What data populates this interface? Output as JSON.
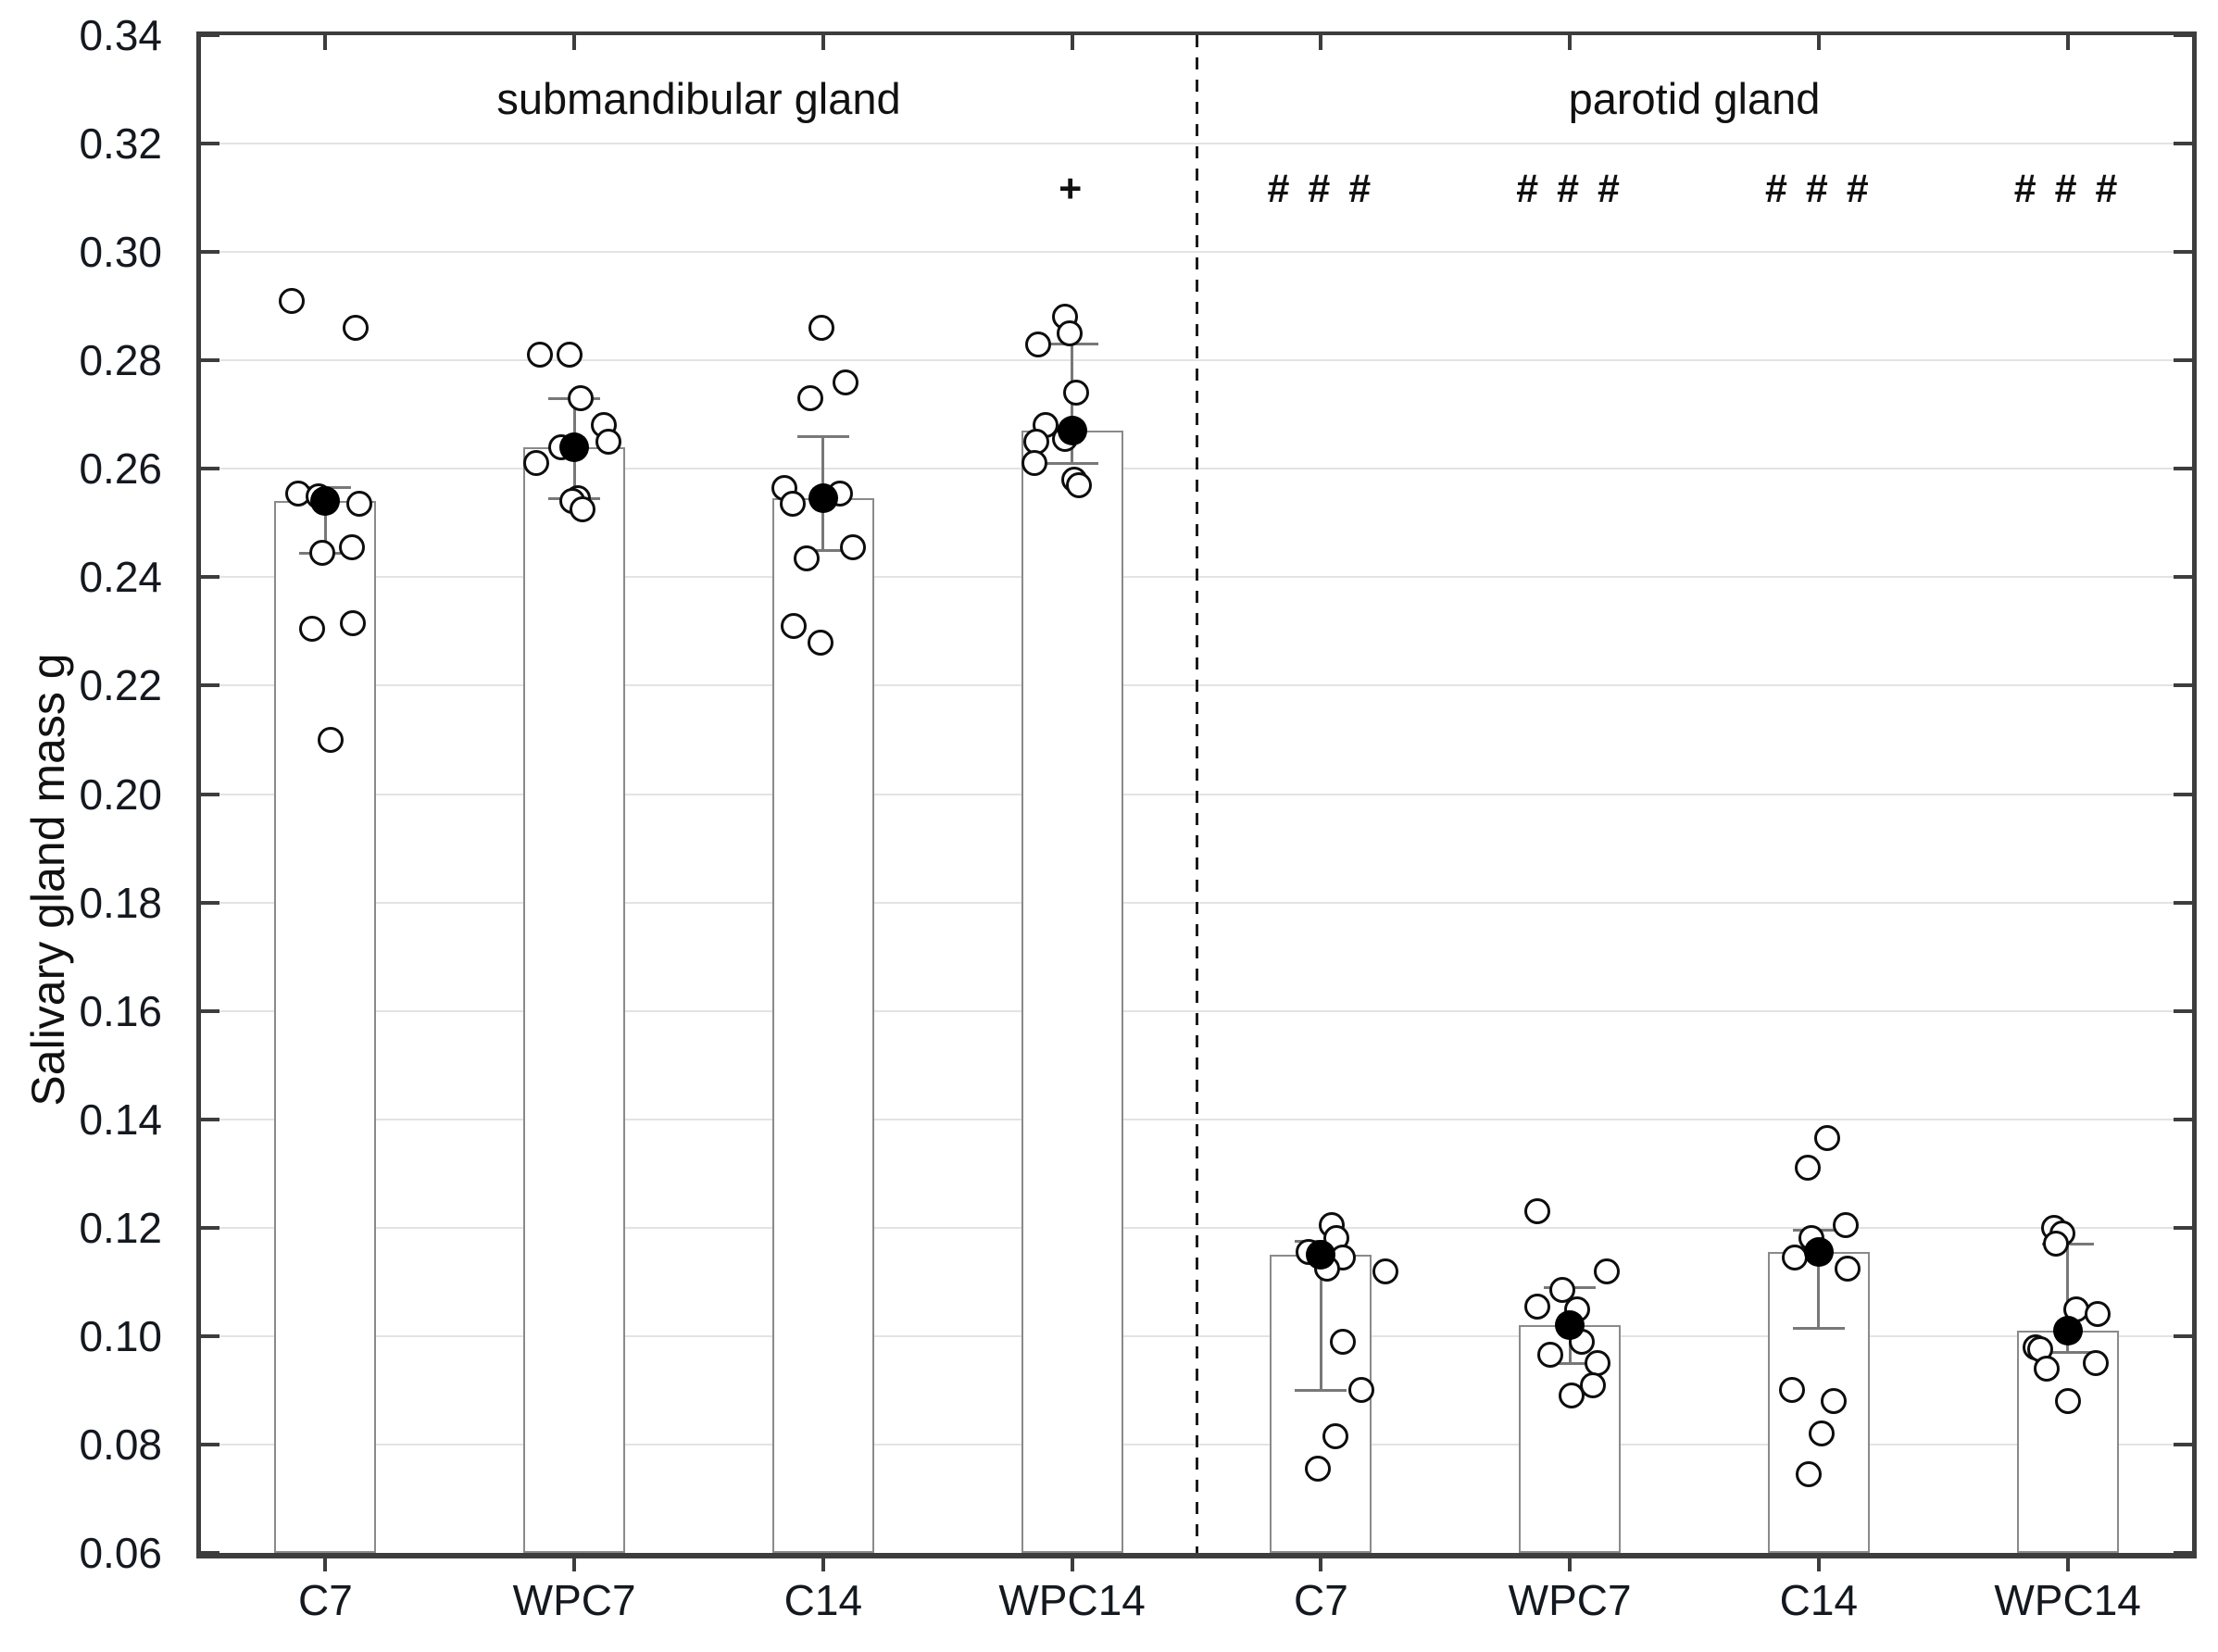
{
  "figure": {
    "background_color": "#ffffff",
    "text_color": "#111111"
  },
  "chart_data": {
    "type": "bar",
    "title": "",
    "xlabel": "",
    "ylabel": "Salivary gland mass g",
    "ylim": [
      0.06,
      0.34
    ],
    "ytick_step": 0.02,
    "ytick_labels": [
      "0.34",
      "0.32",
      "0.30",
      "0.28",
      "0.26",
      "0.24",
      "0.22",
      "0.20",
      "0.18",
      "0.16",
      "0.14",
      "0.12",
      "0.10",
      "0.08",
      "0.06"
    ],
    "grid": "horizontal-light",
    "legend": "none",
    "marker_legend": {
      "open_circle": "individual animal value",
      "filled_circle": "group mean",
      "whiskers": "standard deviation",
      "bar": "group mean bar"
    },
    "sections": [
      {
        "label": "submandibular gland"
      },
      {
        "label": "parotid gland"
      }
    ],
    "separator_between_groups": [
      3,
      4
    ],
    "groups": [
      {
        "label": "C7",
        "section": 0,
        "mean": 0.254,
        "bar_top": 0.254,
        "err_low": 0.2445,
        "err_high": 0.2565,
        "annotation": "",
        "points": [
          [
            0.291,
            -36
          ],
          [
            0.286,
            33
          ],
          [
            0.2555,
            -29
          ],
          [
            0.255,
            -7
          ],
          [
            0.2535,
            37
          ],
          [
            0.2455,
            29
          ],
          [
            0.2445,
            -3
          ],
          [
            0.2315,
            30
          ],
          [
            0.2305,
            -14
          ],
          [
            0.21,
            6
          ]
        ]
      },
      {
        "label": "WPC7",
        "section": 0,
        "mean": 0.264,
        "bar_top": 0.264,
        "err_low": 0.2545,
        "err_high": 0.273,
        "annotation": "",
        "points": [
          [
            0.281,
            -37
          ],
          [
            0.281,
            -5
          ],
          [
            0.273,
            7
          ],
          [
            0.268,
            32
          ],
          [
            0.265,
            37
          ],
          [
            0.264,
            -14
          ],
          [
            0.261,
            -41
          ],
          [
            0.2545,
            4
          ],
          [
            0.254,
            -2
          ],
          [
            0.2525,
            9
          ]
        ]
      },
      {
        "label": "C14",
        "section": 0,
        "mean": 0.2545,
        "bar_top": 0.2545,
        "err_low": 0.245,
        "err_high": 0.266,
        "annotation": "",
        "points": [
          [
            0.286,
            -2
          ],
          [
            0.276,
            24
          ],
          [
            0.273,
            -14
          ],
          [
            0.2565,
            -42
          ],
          [
            0.2555,
            18
          ],
          [
            0.2535,
            -33
          ],
          [
            0.2455,
            32
          ],
          [
            0.2435,
            -18
          ],
          [
            0.231,
            -32
          ],
          [
            0.228,
            -3
          ]
        ]
      },
      {
        "label": "WPC14",
        "section": 0,
        "mean": 0.267,
        "bar_top": 0.267,
        "err_low": 0.261,
        "err_high": 0.283,
        "annotation": "+",
        "points": [
          [
            0.288,
            -8
          ],
          [
            0.285,
            -3
          ],
          [
            0.283,
            -37
          ],
          [
            0.274,
            4
          ],
          [
            0.268,
            -29
          ],
          [
            0.2655,
            -8
          ],
          [
            0.265,
            -39
          ],
          [
            0.261,
            -41
          ],
          [
            0.258,
            2
          ],
          [
            0.257,
            7
          ]
        ]
      },
      {
        "label": "C7",
        "section": 1,
        "mean": 0.115,
        "bar_top": 0.115,
        "err_low": 0.09,
        "err_high": 0.1175,
        "annotation": "# # #",
        "points": [
          [
            0.1205,
            12
          ],
          [
            0.118,
            17
          ],
          [
            0.1155,
            -13
          ],
          [
            0.1145,
            24
          ],
          [
            0.1125,
            7
          ],
          [
            0.112,
            70
          ],
          [
            0.099,
            24
          ],
          [
            0.09,
            44
          ],
          [
            0.0815,
            16
          ],
          [
            0.0755,
            -3
          ]
        ]
      },
      {
        "label": "WPC7",
        "section": 1,
        "mean": 0.102,
        "bar_top": 0.102,
        "err_low": 0.095,
        "err_high": 0.109,
        "annotation": "# # #",
        "points": [
          [
            0.123,
            -35
          ],
          [
            0.112,
            40
          ],
          [
            0.1085,
            -8
          ],
          [
            0.1055,
            -35
          ],
          [
            0.105,
            8
          ],
          [
            0.099,
            13
          ],
          [
            0.0965,
            -21
          ],
          [
            0.095,
            30
          ],
          [
            0.091,
            25
          ],
          [
            0.089,
            2
          ]
        ]
      },
      {
        "label": "C14",
        "section": 1,
        "mean": 0.1155,
        "bar_top": 0.1155,
        "err_low": 0.1015,
        "err_high": 0.1195,
        "annotation": "# # #",
        "points": [
          [
            0.1365,
            9
          ],
          [
            0.131,
            -12
          ],
          [
            0.1205,
            29
          ],
          [
            0.118,
            -8
          ],
          [
            0.1145,
            -26
          ],
          [
            0.1125,
            31
          ],
          [
            0.09,
            -29
          ],
          [
            0.088,
            16
          ],
          [
            0.082,
            3
          ],
          [
            0.0745,
            -11
          ]
        ]
      },
      {
        "label": "WPC14",
        "section": 1,
        "mean": 0.101,
        "bar_top": 0.101,
        "err_low": 0.097,
        "err_high": 0.117,
        "annotation": "# # #",
        "points": [
          [
            0.12,
            -15
          ],
          [
            0.119,
            -6
          ],
          [
            0.117,
            -13
          ],
          [
            0.105,
            9
          ],
          [
            0.104,
            32
          ],
          [
            0.098,
            -35
          ],
          [
            0.0975,
            -30
          ],
          [
            0.095,
            30
          ],
          [
            0.094,
            -23
          ],
          [
            0.088,
            0
          ]
        ]
      }
    ],
    "style": {
      "axis_color": "#3d3d3d",
      "gridline_color": "#e3e3e3",
      "bar_border_color": "#8a8a8a",
      "bar_fill_color": "#ffffff",
      "error_bar_color": "#787878",
      "point_outline_color": "#0d0d0d",
      "mean_dot_color": "#000000",
      "separator_color": "#1c1c1c"
    }
  }
}
